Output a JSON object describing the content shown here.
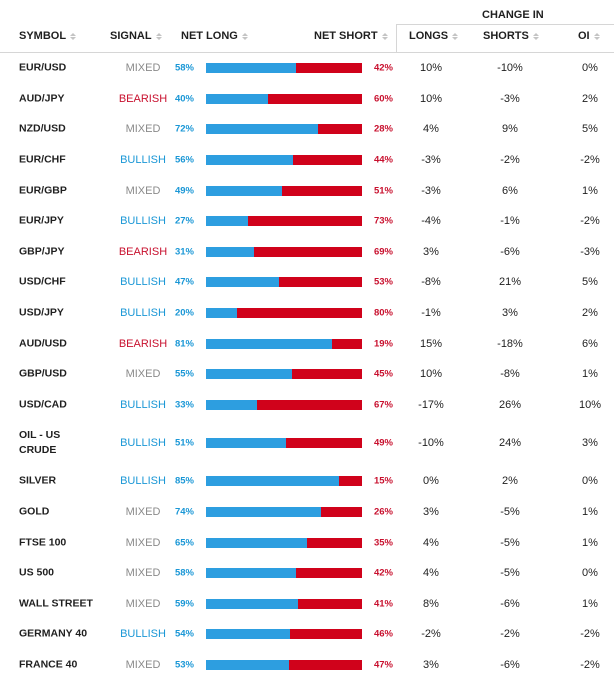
{
  "header": {
    "change_in": "CHANGE IN",
    "symbol": "SYMBOL",
    "signal": "SIGNAL",
    "net_long": "NET LONG",
    "net_short": "NET SHORT",
    "longs": "LONGS",
    "shorts": "SHORTS",
    "oi": "OI"
  },
  "colors": {
    "long_bar": "#2d9ee0",
    "short_bar": "#d0021b",
    "bullish": "#1a97d6",
    "bearish": "#c8102e",
    "mixed": "#8a8a8a"
  },
  "rows": [
    {
      "symbol": "EUR/USD",
      "signal": "MIXED",
      "net_long": "58%",
      "net_short": "42%",
      "longs": "10%",
      "shorts": "-10%",
      "oi": "0%",
      "long_pct": 58
    },
    {
      "symbol": "AUD/JPY",
      "signal": "BEARISH",
      "net_long": "40%",
      "net_short": "60%",
      "longs": "10%",
      "shorts": "-3%",
      "oi": "2%",
      "long_pct": 40
    },
    {
      "symbol": "NZD/USD",
      "signal": "MIXED",
      "net_long": "72%",
      "net_short": "28%",
      "longs": "4%",
      "shorts": "9%",
      "oi": "5%",
      "long_pct": 72
    },
    {
      "symbol": "EUR/CHF",
      "signal": "BULLISH",
      "net_long": "56%",
      "net_short": "44%",
      "longs": "-3%",
      "shorts": "-2%",
      "oi": "-2%",
      "long_pct": 56
    },
    {
      "symbol": "EUR/GBP",
      "signal": "MIXED",
      "net_long": "49%",
      "net_short": "51%",
      "longs": "-3%",
      "shorts": "6%",
      "oi": "1%",
      "long_pct": 49
    },
    {
      "symbol": "EUR/JPY",
      "signal": "BULLISH",
      "net_long": "27%",
      "net_short": "73%",
      "longs": "-4%",
      "shorts": "-1%",
      "oi": "-2%",
      "long_pct": 27
    },
    {
      "symbol": "GBP/JPY",
      "signal": "BEARISH",
      "net_long": "31%",
      "net_short": "69%",
      "longs": "3%",
      "shorts": "-6%",
      "oi": "-3%",
      "long_pct": 31
    },
    {
      "symbol": "USD/CHF",
      "signal": "BULLISH",
      "net_long": "47%",
      "net_short": "53%",
      "longs": "-8%",
      "shorts": "21%",
      "oi": "5%",
      "long_pct": 47
    },
    {
      "symbol": "USD/JPY",
      "signal": "BULLISH",
      "net_long": "20%",
      "net_short": "80%",
      "longs": "-1%",
      "shorts": "3%",
      "oi": "2%",
      "long_pct": 20
    },
    {
      "symbol": "AUD/USD",
      "signal": "BEARISH",
      "net_long": "81%",
      "net_short": "19%",
      "longs": "15%",
      "shorts": "-18%",
      "oi": "6%",
      "long_pct": 81
    },
    {
      "symbol": "GBP/USD",
      "signal": "MIXED",
      "net_long": "55%",
      "net_short": "45%",
      "longs": "10%",
      "shorts": "-8%",
      "oi": "1%",
      "long_pct": 55
    },
    {
      "symbol": "USD/CAD",
      "signal": "BULLISH",
      "net_long": "33%",
      "net_short": "67%",
      "longs": "-17%",
      "shorts": "26%",
      "oi": "10%",
      "long_pct": 33
    },
    {
      "symbol": "OIL - US CRUDE",
      "signal": "BULLISH",
      "net_long": "51%",
      "net_short": "49%",
      "longs": "-10%",
      "shorts": "24%",
      "oi": "3%",
      "long_pct": 51
    },
    {
      "symbol": "SILVER",
      "signal": "BULLISH",
      "net_long": "85%",
      "net_short": "15%",
      "longs": "0%",
      "shorts": "2%",
      "oi": "0%",
      "long_pct": 85
    },
    {
      "symbol": "GOLD",
      "signal": "MIXED",
      "net_long": "74%",
      "net_short": "26%",
      "longs": "3%",
      "shorts": "-5%",
      "oi": "1%",
      "long_pct": 74
    },
    {
      "symbol": "FTSE 100",
      "signal": "MIXED",
      "net_long": "65%",
      "net_short": "35%",
      "longs": "4%",
      "shorts": "-5%",
      "oi": "1%",
      "long_pct": 65
    },
    {
      "symbol": "US 500",
      "signal": "MIXED",
      "net_long": "58%",
      "net_short": "42%",
      "longs": "4%",
      "shorts": "-5%",
      "oi": "0%",
      "long_pct": 58
    },
    {
      "symbol": "WALL STREET",
      "signal": "MIXED",
      "net_long": "59%",
      "net_short": "41%",
      "longs": "8%",
      "shorts": "-6%",
      "oi": "1%",
      "long_pct": 59
    },
    {
      "symbol": "GERMANY 40",
      "signal": "BULLISH",
      "net_long": "54%",
      "net_short": "46%",
      "longs": "-2%",
      "shorts": "-2%",
      "oi": "-2%",
      "long_pct": 54
    },
    {
      "symbol": "FRANCE 40",
      "signal": "MIXED",
      "net_long": "53%",
      "net_short": "47%",
      "longs": "3%",
      "shorts": "-6%",
      "oi": "-2%",
      "long_pct": 53
    }
  ]
}
